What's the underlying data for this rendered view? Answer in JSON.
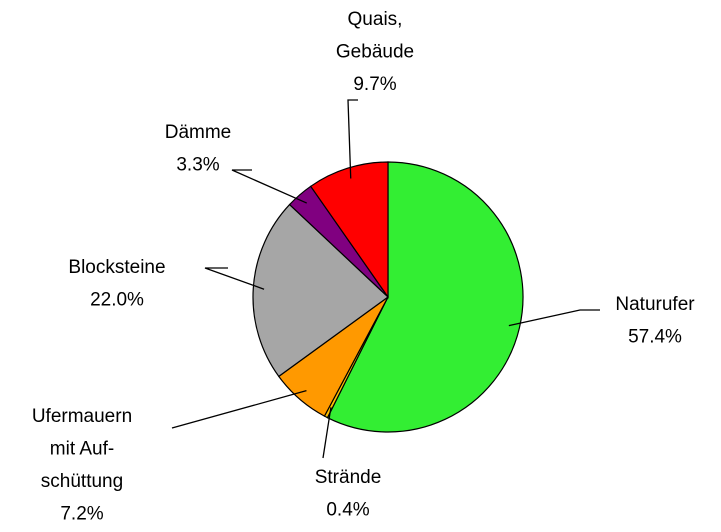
{
  "chart_data": {
    "type": "pie",
    "categories": [
      "Naturufer",
      "Strände",
      [
        "Ufermauern",
        "mit Auf-",
        "schüttung"
      ],
      "Blocksteine",
      "Dämme",
      [
        "Quais,",
        "Gebäude"
      ]
    ],
    "values": [
      57.4,
      0.4,
      7.2,
      22.0,
      3.3,
      9.7
    ],
    "value_labels": [
      "57.4%",
      "0.4%",
      "7.2%",
      "22.0%",
      "3.3%",
      "9.7%"
    ],
    "colors": [
      "#33ee33",
      "#ffc000",
      "#ff9900",
      "#a6a6a6",
      "#800080",
      "#ff0000"
    ]
  }
}
